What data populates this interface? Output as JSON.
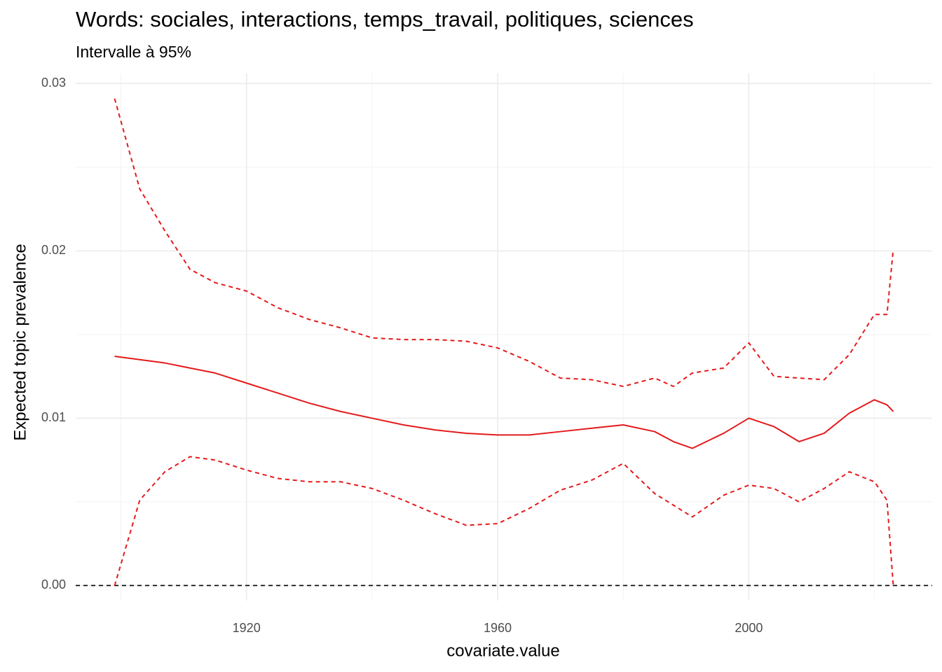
{
  "chart_data": {
    "type": "line",
    "title": "Words: sociales, interactions, temps_travail, politiques, sciences",
    "subtitle": "Intervalle à 95%",
    "x_label": "covariate.value",
    "y_label": "Expected topic prevalence",
    "x": [
      1899,
      1903,
      1907,
      1911,
      1915,
      1920,
      1925,
      1930,
      1935,
      1940,
      1945,
      1950,
      1955,
      1960,
      1965,
      1970,
      1975,
      1980,
      1985,
      1988,
      1991,
      1996,
      2000,
      2004,
      2008,
      2012,
      2016,
      2020,
      2022,
      2023
    ],
    "series": [
      {
        "color": "#e41a1c",
        "dash": false,
        "values": [
          0.0137,
          0.0135,
          0.0133,
          0.013,
          0.0127,
          0.0121,
          0.0115,
          0.0109,
          0.0104,
          0.01,
          0.0096,
          0.0093,
          0.0091,
          0.009,
          0.009,
          0.0092,
          0.0094,
          0.0096,
          0.0092,
          0.0086,
          0.0082,
          0.0091,
          0.01,
          0.0095,
          0.0086,
          0.0091,
          0.0103,
          0.0111,
          0.0108,
          0.0104
        ]
      },
      {
        "color": "#e41a1c",
        "dash": true,
        "values": [
          0.0291,
          0.0237,
          0.0212,
          0.0189,
          0.0181,
          0.0176,
          0.0166,
          0.0159,
          0.0154,
          0.0148,
          0.0147,
          0.0147,
          0.0146,
          0.0142,
          0.0134,
          0.0124,
          0.0123,
          0.0119,
          0.0124,
          0.0119,
          0.0127,
          0.013,
          0.0145,
          0.0125,
          0.0124,
          0.0123,
          0.0138,
          0.0162,
          0.0162,
          0.0201
        ]
      },
      {
        "color": "#e41a1c",
        "dash": true,
        "values": [
          0.0,
          0.0051,
          0.0068,
          0.0077,
          0.0075,
          0.0069,
          0.0064,
          0.0062,
          0.0062,
          0.0058,
          0.0051,
          0.0043,
          0.0036,
          0.0037,
          0.0046,
          0.0057,
          0.0063,
          0.0073,
          0.0055,
          0.0048,
          0.0041,
          0.0054,
          0.006,
          0.0058,
          0.005,
          0.0058,
          0.0068,
          0.0062,
          0.0051,
          0.0
        ]
      }
    ],
    "xlim": [
      1892.8,
      2029.2
    ],
    "ylim": [
      -0.0009,
      0.0306
    ],
    "xticks": [
      1920,
      1960,
      2000
    ],
    "yticks": [
      {
        "value": 0,
        "label": "0.00"
      },
      0.01,
      0.02,
      0.03
    ],
    "x_minor_grid": [
      1900,
      1940,
      1980,
      2020
    ],
    "y_minor_grid": [
      0.005,
      0.015,
      0.025
    ],
    "hline": 0,
    "grid": true
  }
}
